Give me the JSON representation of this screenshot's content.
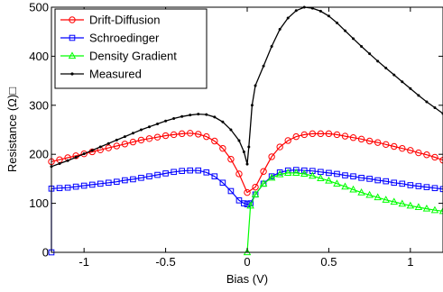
{
  "chart_data": {
    "type": "line",
    "title": "",
    "xlabel": "Bias (V)",
    "ylabel": "Resistance (Ω)□",
    "xlim": [
      -1.2,
      1.2
    ],
    "ylim": [
      0,
      500
    ],
    "xticks": [
      -1,
      -0.5,
      0,
      0.5,
      1
    ],
    "xtick_labels": [
      "-1",
      "-0.5",
      "0",
      "0.5",
      "1"
    ],
    "yticks": [
      0,
      100,
      200,
      300,
      400,
      500
    ],
    "ytick_labels": [
      "0",
      "100",
      "200",
      "300",
      "400",
      "500"
    ],
    "grid": false,
    "legend_position": "top-left",
    "series": [
      {
        "name": "Drift-Diffusion",
        "color": "#ff0000",
        "marker": "circle",
        "x": [
          -1.2,
          -1.15,
          -1.1,
          -1.05,
          -1.0,
          -0.95,
          -0.9,
          -0.85,
          -0.8,
          -0.75,
          -0.7,
          -0.65,
          -0.6,
          -0.55,
          -0.5,
          -0.45,
          -0.4,
          -0.35,
          -0.3,
          -0.25,
          -0.2,
          -0.15,
          -0.1,
          -0.05,
          0.0,
          0.05,
          0.1,
          0.15,
          0.2,
          0.25,
          0.3,
          0.35,
          0.4,
          0.45,
          0.5,
          0.55,
          0.6,
          0.65,
          0.7,
          0.75,
          0.8,
          0.85,
          0.9,
          0.95,
          1.0,
          1.05,
          1.1,
          1.15,
          1.2
        ],
        "y": [
          185,
          189,
          193,
          197,
          201,
          205,
          209,
          213,
          217,
          221,
          225,
          229,
          232,
          235,
          238,
          240,
          242,
          243,
          241,
          236,
          227,
          212,
          190,
          160,
          122,
          133,
          165,
          195,
          215,
          228,
          236,
          240,
          242,
          242,
          242,
          240,
          237,
          234,
          231,
          227,
          224,
          220,
          216,
          212,
          208,
          203,
          199,
          194,
          188
        ]
      },
      {
        "name": "Schroedinger",
        "color": "#0000ff",
        "marker": "square",
        "x": [
          -1.2,
          -1.2,
          -1.15,
          -1.1,
          -1.05,
          -1.0,
          -0.95,
          -0.9,
          -0.85,
          -0.8,
          -0.75,
          -0.7,
          -0.65,
          -0.6,
          -0.55,
          -0.5,
          -0.45,
          -0.4,
          -0.35,
          -0.3,
          -0.25,
          -0.2,
          -0.15,
          -0.1,
          -0.05,
          -0.02,
          0.0,
          0.02,
          0.05,
          0.1,
          0.15,
          0.2,
          0.25,
          0.3,
          0.35,
          0.4,
          0.45,
          0.5,
          0.55,
          0.6,
          0.65,
          0.7,
          0.75,
          0.8,
          0.85,
          0.9,
          0.95,
          1.0,
          1.05,
          1.1,
          1.15,
          1.2
        ],
        "y": [
          0,
          130,
          131,
          132,
          134,
          136,
          138,
          140,
          142,
          144,
          147,
          149,
          152,
          155,
          158,
          161,
          164,
          166,
          167,
          167,
          163,
          155,
          142,
          125,
          106,
          100,
          98,
          100,
          118,
          140,
          155,
          163,
          167,
          168,
          167,
          166,
          164,
          162,
          160,
          157,
          155,
          152,
          150,
          147,
          145,
          142,
          140,
          137,
          135,
          133,
          131,
          129
        ]
      },
      {
        "name": "Density Gradient",
        "color": "#00ff00",
        "marker": "triangle",
        "x": [
          0.0,
          0.02,
          0.05,
          0.1,
          0.15,
          0.2,
          0.25,
          0.3,
          0.35,
          0.4,
          0.45,
          0.5,
          0.55,
          0.6,
          0.65,
          0.7,
          0.75,
          0.8,
          0.85,
          0.9,
          0.95,
          1.0,
          1.05,
          1.1,
          1.15,
          1.2
        ],
        "y": [
          0,
          95,
          118,
          140,
          152,
          159,
          162,
          162,
          160,
          156,
          151,
          146,
          140,
          134,
          128,
          122,
          117,
          112,
          107,
          103,
          99,
          95,
          92,
          89,
          86,
          84
        ]
      },
      {
        "name": "Measured",
        "color": "#000000",
        "marker": "dot",
        "x": [
          -1.2,
          -1.15,
          -1.1,
          -1.05,
          -1.0,
          -0.95,
          -0.9,
          -0.85,
          -0.8,
          -0.75,
          -0.7,
          -0.65,
          -0.6,
          -0.55,
          -0.5,
          -0.45,
          -0.4,
          -0.35,
          -0.3,
          -0.25,
          -0.2,
          -0.15,
          -0.1,
          -0.05,
          -0.02,
          0.0,
          0.01,
          0.03,
          0.05,
          0.1,
          0.15,
          0.2,
          0.25,
          0.3,
          0.35,
          0.4,
          0.45,
          0.5,
          0.55,
          0.6,
          0.65,
          0.7,
          0.75,
          0.8,
          0.85,
          0.9,
          0.95,
          1.0,
          1.05,
          1.1,
          1.15,
          1.2
        ],
        "y": [
          175,
          181,
          187,
          194,
          201,
          208,
          215,
          222,
          229,
          236,
          243,
          250,
          256,
          262,
          268,
          273,
          277,
          280,
          282,
          281,
          276,
          266,
          250,
          228,
          205,
          180,
          215,
          300,
          340,
          380,
          420,
          455,
          478,
          493,
          500,
          498,
          492,
          482,
          468,
          452,
          436,
          420,
          405,
          390,
          376,
          362,
          348,
          334,
          320,
          307,
          295,
          283
        ]
      }
    ]
  }
}
